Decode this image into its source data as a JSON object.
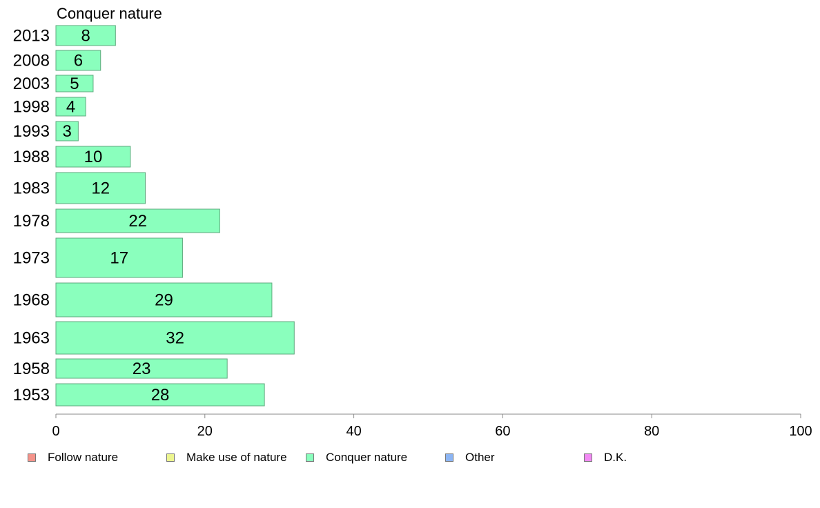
{
  "chart_data": {
    "type": "bar",
    "orientation": "horizontal",
    "title": "Conquer nature",
    "categories": [
      "2013",
      "2008",
      "2003",
      "1998",
      "1993",
      "1988",
      "1983",
      "1978",
      "1973",
      "1968",
      "1963",
      "1958",
      "1953"
    ],
    "series": [
      {
        "name": "Conquer nature",
        "values": [
          8,
          6,
          5,
          4,
          3,
          10,
          12,
          22,
          17,
          29,
          32,
          23,
          28
        ]
      }
    ],
    "xlim": [
      0,
      100
    ],
    "xticks": [
      0,
      20,
      40,
      60,
      80,
      100
    ],
    "legend_position": "bottom",
    "grid": false
  },
  "legend": [
    {
      "label": "Follow nature",
      "color": "#f4938a"
    },
    {
      "label": "Make use of nature",
      "color": "#ecf58f"
    },
    {
      "label": "Conquer nature",
      "color": "#8affbd"
    },
    {
      "label": "Other",
      "color": "#8cb5f4"
    },
    {
      "label": "D.K.",
      "color": "#f28af4"
    }
  ],
  "colors": {
    "bar_fill": "#8affbd",
    "bar_stroke": "#5faa7e",
    "axis": "#888888"
  }
}
